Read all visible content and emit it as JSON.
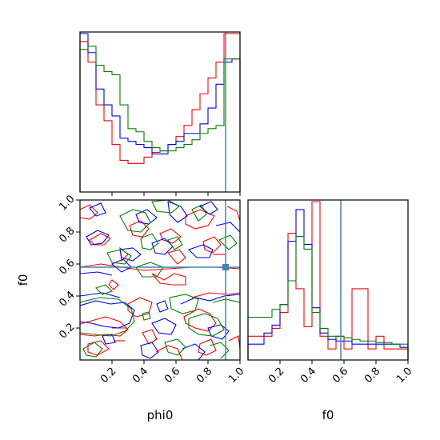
{
  "chart_data": {
    "type": "corner",
    "parameters": [
      "phi0",
      "f0"
    ],
    "truth": {
      "phi0": 0.91,
      "f0": 0.58
    },
    "truth_color": "#4682b4",
    "series_colors": [
      "#ff0000",
      "#0000ff",
      "#008000"
    ],
    "axes": {
      "phi0": {
        "label": "phi0",
        "lim": [
          0,
          1
        ],
        "ticks": [
          "0.2",
          "0.4",
          "0.6",
          "0.8",
          "1.0"
        ]
      },
      "f0": {
        "label": "f0",
        "lim": [
          0,
          1
        ],
        "ticks": [
          "0.2",
          "0.4",
          "0.6",
          "0.8",
          "1.0"
        ]
      }
    },
    "hist_phi0": {
      "bins": 20,
      "series": [
        {
          "color": "#ff0000",
          "values": [
            0.95,
            0.82,
            0.55,
            0.45,
            0.3,
            0.2,
            0.18,
            0.18,
            0.22,
            0.25,
            0.26,
            0.3,
            0.35,
            0.42,
            0.52,
            0.62,
            0.72,
            0.82,
            1.0,
            1.0
          ]
        },
        {
          "color": "#0000ff",
          "values": [
            1.0,
            0.88,
            0.65,
            0.55,
            0.48,
            0.34,
            0.32,
            0.3,
            0.28,
            0.24,
            0.24,
            0.3,
            0.32,
            0.37,
            0.37,
            0.43,
            0.53,
            0.68,
            0.82,
            0.84
          ]
        },
        {
          "color": "#008000",
          "values": [
            0.9,
            0.92,
            0.8,
            0.76,
            0.74,
            0.55,
            0.4,
            0.38,
            0.32,
            0.28,
            0.26,
            0.26,
            0.28,
            0.3,
            0.33,
            0.37,
            0.4,
            0.42,
            0.84,
            0.84
          ]
        }
      ]
    },
    "hist_f0": {
      "bins": 20,
      "series": [
        {
          "color": "#ff0000",
          "values": [
            0.15,
            0.15,
            0.15,
            0.2,
            0.3,
            0.8,
            0.45,
            0.21,
            1.0,
            0.15,
            0.07,
            0.15,
            0.07,
            0.45,
            0.45,
            0.07,
            0.15,
            0.07,
            0.07,
            0.07
          ]
        },
        {
          "color": "#0000ff",
          "values": [
            0.1,
            0.1,
            0.17,
            0.22,
            0.35,
            0.75,
            0.95,
            0.73,
            0.33,
            0.17,
            0.13,
            0.12,
            0.12,
            0.1,
            0.1,
            0.1,
            0.1,
            0.1,
            0.1,
            0.08
          ]
        },
        {
          "color": "#008000",
          "values": [
            0.27,
            0.27,
            0.27,
            0.32,
            0.35,
            0.5,
            0.78,
            0.7,
            0.3,
            0.2,
            0.15,
            0.15,
            0.14,
            0.13,
            0.12,
            0.12,
            0.11,
            0.11,
            0.1,
            0.1
          ]
        }
      ]
    }
  }
}
